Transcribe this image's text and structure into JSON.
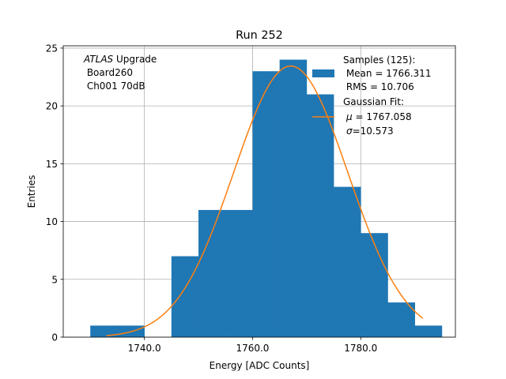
{
  "chart_data": {
    "type": "bar",
    "title": "Run 252",
    "xlabel": "Energy [ADC Counts]",
    "ylabel": "Entries",
    "xlim": [
      1725,
      1797.5
    ],
    "ylim": [
      0,
      25.2
    ],
    "grid": true,
    "xticks": [
      1740.0,
      1760.0,
      1780.0
    ],
    "xtick_labels": [
      "1740.0",
      "1760.0",
      "1780.0"
    ],
    "yticks": [
      0,
      5,
      10,
      15,
      20,
      25
    ],
    "ytick_labels": [
      "0",
      "5",
      "10",
      "15",
      "20",
      "25"
    ],
    "annotation": {
      "line1_italic": "ATLAS",
      "line1_rest": " Upgrade",
      "line2": " Board260",
      "line3": " Ch001 70dB"
    },
    "histogram": {
      "color": "#1f77b4",
      "bin_edges": [
        1730,
        1735,
        1740,
        1745,
        1750,
        1755,
        1760,
        1765,
        1770,
        1775,
        1780,
        1785,
        1790,
        1795
      ],
      "counts": [
        1,
        1,
        0,
        7,
        11,
        11,
        23,
        24,
        21,
        13,
        9,
        3,
        1
      ]
    },
    "fit_curve": {
      "color": "#ff7f0e",
      "type": "gaussian",
      "amplitude": 23.45,
      "mu": 1767.058,
      "sigma": 10.573,
      "x_range": [
        1733,
        1791.5
      ]
    },
    "legend": {
      "placement": "top-right",
      "entries": [
        {
          "series": "histogram",
          "line1": "Samples (125):",
          "line2": " Mean = 1766.311",
          "line3": " RMS = 10.706"
        },
        {
          "series": "fit",
          "line1": "Gaussian Fit:",
          "line2_sym": "μ",
          "line2_rest": " = 1767.058",
          "line3_sym": "σ",
          "line3_rest": "=10.573"
        }
      ]
    }
  }
}
